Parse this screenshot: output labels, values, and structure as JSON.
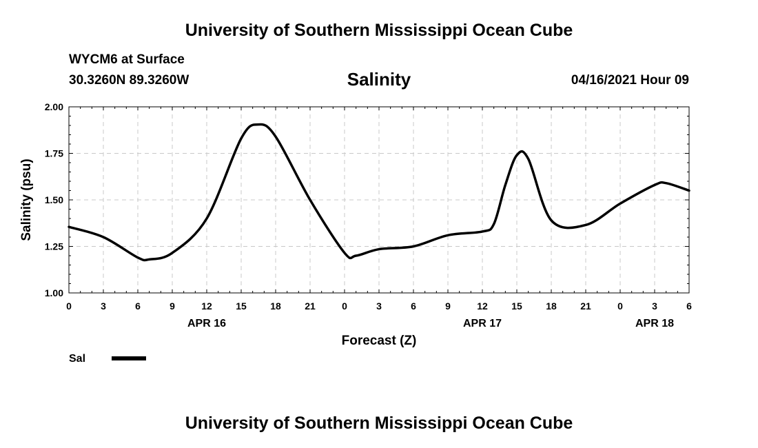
{
  "header": {
    "title_top": "University of Southern Mississippi Ocean Cube",
    "title_bottom": "University of Southern Mississippi Ocean Cube",
    "station": "WYCM6 at Surface",
    "coords": "30.3260N  89.3260W",
    "date": "04/16/2021 Hour 09"
  },
  "chart_data": {
    "type": "line",
    "title": "Salinity",
    "xlabel": "Forecast (Z)",
    "ylabel": "Salinity (psu)",
    "ylim": [
      1.0,
      2.0
    ],
    "xlim": [
      0,
      54
    ],
    "y_ticks": [
      "1.00",
      "1.25",
      "1.50",
      "1.75",
      "2.00"
    ],
    "x_ticks": [
      "0",
      "3",
      "6",
      "9",
      "12",
      "15",
      "18",
      "21",
      "0",
      "3",
      "6",
      "9",
      "12",
      "15",
      "18",
      "21",
      "0",
      "3",
      "6"
    ],
    "day_labels": [
      "APR 16",
      "APR 17",
      "APR 18"
    ],
    "grid": true,
    "legend_position": "bottom-left",
    "series": [
      {
        "name": "Sal",
        "color": "#000000",
        "x": [
          0,
          3,
          6,
          7,
          9,
          12,
          15,
          16.5,
          18,
          21,
          24,
          25,
          27,
          30,
          33,
          36,
          37,
          38,
          39,
          40,
          42,
          45,
          48,
          51,
          52,
          54
        ],
        "values": [
          1.355,
          1.3,
          1.19,
          1.18,
          1.215,
          1.4,
          1.83,
          1.905,
          1.84,
          1.5,
          1.215,
          1.2,
          1.235,
          1.25,
          1.31,
          1.33,
          1.37,
          1.58,
          1.74,
          1.72,
          1.39,
          1.365,
          1.48,
          1.58,
          1.59,
          1.55
        ]
      }
    ]
  }
}
